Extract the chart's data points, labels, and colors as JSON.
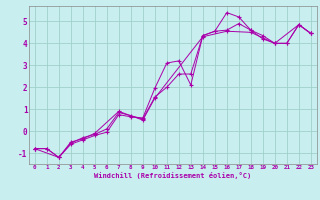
{
  "xlabel": "Windchill (Refroidissement éolien,°C)",
  "bg_color": "#c8eef0",
  "line_color": "#aa00aa",
  "grid_color": "#a0d0c8",
  "xlim": [
    -0.5,
    23.5
  ],
  "ylim": [
    -1.5,
    5.7
  ],
  "yticks": [
    -1,
    0,
    1,
    2,
    3,
    4,
    5
  ],
  "xticks": [
    0,
    1,
    2,
    3,
    4,
    5,
    6,
    7,
    8,
    9,
    10,
    11,
    12,
    13,
    14,
    15,
    16,
    17,
    18,
    19,
    20,
    21,
    22,
    23
  ],
  "series1": [
    [
      0,
      -0.8
    ],
    [
      1,
      -0.8
    ],
    [
      2,
      -1.2
    ],
    [
      3,
      -0.6
    ],
    [
      4,
      -0.4
    ],
    [
      5,
      -0.2
    ],
    [
      6,
      -0.05
    ],
    [
      7,
      0.75
    ],
    [
      8,
      0.65
    ],
    [
      9,
      0.6
    ],
    [
      10,
      1.95
    ],
    [
      11,
      3.1
    ],
    [
      12,
      3.2
    ],
    [
      13,
      2.1
    ],
    [
      14,
      4.35
    ],
    [
      15,
      4.55
    ],
    [
      16,
      5.4
    ],
    [
      17,
      5.2
    ],
    [
      18,
      4.6
    ],
    [
      19,
      4.35
    ],
    [
      20,
      4.0
    ],
    [
      21,
      4.0
    ],
    [
      22,
      4.85
    ],
    [
      23,
      4.45
    ]
  ],
  "series2": [
    [
      0,
      -0.8
    ],
    [
      1,
      -0.8
    ],
    [
      2,
      -1.2
    ],
    [
      3,
      -0.55
    ],
    [
      4,
      -0.3
    ],
    [
      5,
      -0.15
    ],
    [
      6,
      0.1
    ],
    [
      7,
      0.85
    ],
    [
      8,
      0.7
    ],
    [
      9,
      0.55
    ],
    [
      10,
      1.55
    ],
    [
      11,
      2.0
    ],
    [
      12,
      2.6
    ],
    [
      13,
      2.6
    ],
    [
      14,
      4.35
    ],
    [
      15,
      4.55
    ],
    [
      16,
      4.6
    ],
    [
      17,
      4.9
    ],
    [
      18,
      4.6
    ],
    [
      19,
      4.2
    ],
    [
      20,
      4.0
    ],
    [
      21,
      4.0
    ],
    [
      22,
      4.85
    ],
    [
      23,
      4.45
    ]
  ],
  "series3": [
    [
      0,
      -0.8
    ],
    [
      2,
      -1.2
    ],
    [
      3,
      -0.5
    ],
    [
      4,
      -0.35
    ],
    [
      5,
      -0.1
    ],
    [
      7,
      0.9
    ],
    [
      9,
      0.5
    ],
    [
      10,
      1.5
    ],
    [
      14,
      4.3
    ],
    [
      16,
      4.55
    ],
    [
      18,
      4.5
    ],
    [
      20,
      4.0
    ],
    [
      22,
      4.85
    ],
    [
      23,
      4.45
    ]
  ]
}
